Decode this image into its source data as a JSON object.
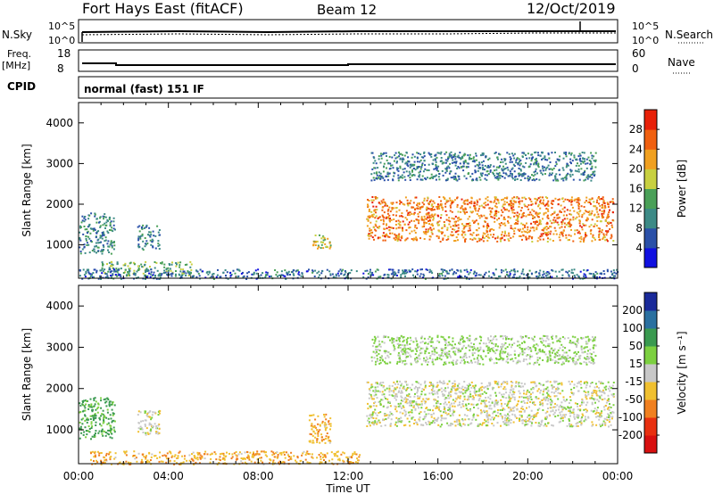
{
  "header": {
    "title": "Fort Hays East (fitACF)",
    "beam": "Beam 12",
    "date": "12/Oct/2019"
  },
  "top_panels": {
    "nsky_label": "N.Sky",
    "nsearch_label": "N.Search",
    "nsky_ticks": [
      "10^5",
      "10^0"
    ],
    "nsearch_ticks": [
      "10^5",
      "10^0"
    ],
    "freq_label_line1": "Freq.",
    "freq_label_line2": "[MHz]",
    "freq_ticks": [
      "18",
      "8"
    ],
    "nave_label": "Nave",
    "nave_ticks": [
      "60",
      "0"
    ],
    "cpid_label": "CPID",
    "cpid_text": "normal (fast) 151 IF"
  },
  "chart_data": [
    {
      "type": "heatmap",
      "title": "",
      "xlabel": "",
      "ylabel": "Slant Range [km]",
      "xlim": [
        "00:00",
        "24:00"
      ],
      "ylim": [
        180,
        4500
      ],
      "yticks": [
        1000,
        2000,
        3000,
        4000
      ],
      "colorbar_label": "Power [dB]",
      "colorbar_ticks": [
        4,
        8,
        12,
        16,
        20,
        24,
        28
      ],
      "colorbar_range": [
        0,
        32
      ],
      "colors": [
        "#1010e0",
        "#2a50a8",
        "#3c8a86",
        "#4aa058",
        "#c8d040",
        "#f0a020",
        "#f06010",
        "#e82008"
      ],
      "regions": [
        {
          "t0": 0.0,
          "t1": 1.6,
          "r0": 800,
          "r1": 1800,
          "value": 10
        },
        {
          "t0": 2.6,
          "t1": 3.6,
          "r0": 900,
          "r1": 1500,
          "value": 10
        },
        {
          "t0": 1.0,
          "t1": 5.0,
          "r0": 250,
          "r1": 600,
          "value": 14
        },
        {
          "t0": 10.4,
          "t1": 11.2,
          "r0": 900,
          "r1": 1300,
          "value": 18
        },
        {
          "t0": 12.8,
          "t1": 23.8,
          "r0": 1100,
          "r1": 2200,
          "value": 24
        },
        {
          "t0": 13.0,
          "t1": 23.0,
          "r0": 2600,
          "r1": 3300,
          "value": 9
        },
        {
          "t0": 0.0,
          "t1": 24.0,
          "r0": 180,
          "r1": 420,
          "value": 8
        }
      ]
    },
    {
      "type": "heatmap",
      "title": "",
      "xlabel": "Time UT",
      "ylabel": "Slant Range [km]",
      "xlim": [
        "00:00",
        "24:00"
      ],
      "xticks": [
        "00:00",
        "04:00",
        "08:00",
        "12:00",
        "16:00",
        "20:00",
        "00:00"
      ],
      "ylim": [
        180,
        4500
      ],
      "yticks": [
        1000,
        2000,
        3000,
        4000
      ],
      "colorbar_label": "Velocity [m s⁻¹]",
      "colorbar_ticks": [
        200,
        100,
        50,
        15,
        -15,
        -50,
        -100,
        -200
      ],
      "colors": [
        "#1a2a9a",
        "#2a70a0",
        "#3a9a50",
        "#7cd040",
        "#c8c8c8",
        "#f0c030",
        "#f08020",
        "#e83010",
        "#d81010"
      ],
      "regions": [
        {
          "t0": 0.0,
          "t1": 1.6,
          "r0": 800,
          "r1": 1800,
          "value": 60
        },
        {
          "t0": 2.6,
          "t1": 3.6,
          "r0": 900,
          "r1": 1500,
          "value": 0
        },
        {
          "t0": 10.2,
          "t1": 11.2,
          "r0": 700,
          "r1": 1400,
          "value": -40
        },
        {
          "t0": 12.8,
          "t1": 23.8,
          "r0": 1100,
          "r1": 2200,
          "value": 0
        },
        {
          "t0": 0.5,
          "t1": 12.5,
          "r0": 180,
          "r1": 500,
          "value": -40
        },
        {
          "t0": 13.0,
          "t1": 23.0,
          "r0": 2600,
          "r1": 3300,
          "value": 20
        }
      ]
    }
  ],
  "xlabel": "Time UT"
}
